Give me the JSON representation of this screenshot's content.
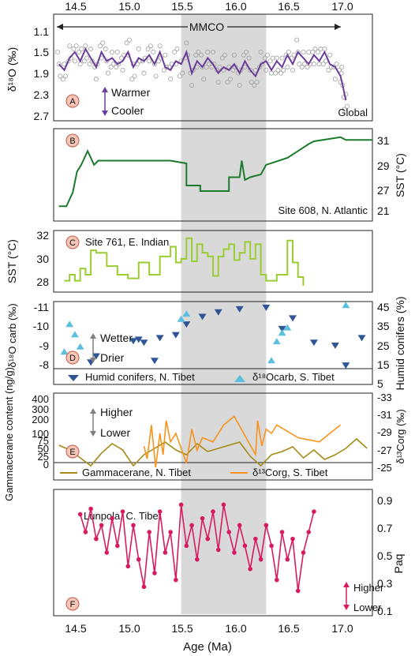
{
  "figure": {
    "x_label": "Age (Ma)",
    "x_ticks": [
      "14.5",
      "15.0",
      "15.5",
      "16.0",
      "16.5",
      "17.0"
    ],
    "xlim": [
      14.3,
      17.3
    ],
    "highlight_band": [
      15.5,
      16.3
    ],
    "highlight_color": "#d9d9d9"
  },
  "panels": {
    "A": {
      "marker": "A",
      "ylabel": "δ¹⁸O (‰)",
      "ticks": [
        "1.1",
        "1.5",
        "1.9",
        "2.3",
        "2.7"
      ],
      "mmco_label": "MMCO",
      "warmer": "Warmer",
      "cooler": "Cooler",
      "corner_label": "Global",
      "line_color": "#6a3d9a"
    },
    "B": {
      "marker": "B",
      "ylabel": "SST (°C)",
      "ticks_right": [
        "21",
        "27",
        "29",
        "31"
      ],
      "site_label": "Site 608, N. Atlantic",
      "line_color": "#1b7a2e"
    },
    "C": {
      "marker": "C",
      "ylabel": "SST (°C)",
      "ticks": [
        "28",
        "30",
        "32"
      ],
      "site_label": "Site 761, E. Indian",
      "line_color": "#9acd32"
    },
    "D": {
      "marker": "D",
      "ylabel_left": "δ¹⁸O carb (‰)",
      "ylabel_right": "Humid conifers (%)",
      "ticks_left": [
        "-11",
        "-10",
        "-9",
        "-8"
      ],
      "ticks_right": [
        "45",
        "35",
        "25",
        "15",
        "5"
      ],
      "wetter": "Wetter",
      "drier": "Drier",
      "legend_conifers": "Humid conifers, N. Tibet",
      "legend_d18o": "δ¹⁸Ocarb, S. Tibet"
    },
    "E": {
      "marker": "E",
      "ylabel_left": "Gammacerane content (ng/g)",
      "ylabel_right": "δ¹³Corg (‰)",
      "ticks_left": [
        "0",
        "25",
        "50",
        "75",
        "100",
        "200",
        "300",
        "400"
      ],
      "ticks_right": [
        "-33",
        "-31",
        "-29",
        "-27",
        "-25"
      ],
      "higher": "Higher",
      "lower": "Lower",
      "legend_gamma": "Gammacerane, N. Tibet",
      "legend_d13c": "δ¹³Corg, S. Tibet"
    },
    "F": {
      "marker": "F",
      "ylabel": "Paq",
      "ticks": [
        "0.1",
        "0.3",
        "0.5",
        "0.7",
        "0.9"
      ],
      "site_label": "Lunpola, C. Tibet",
      "higher": "Higher",
      "lower": "Lower",
      "line_color": "#d81b60"
    }
  },
  "chart_data": [
    {
      "panel": "A",
      "type": "line",
      "xlim": [
        14.3,
        17.3
      ],
      "ylim": [
        2.7,
        1.0
      ],
      "series": [
        {
          "x": [
            14.35,
            14.4,
            14.45,
            14.5,
            14.55,
            14.6,
            14.65,
            14.7,
            14.75,
            14.8,
            14.85,
            14.9,
            14.95,
            15.0,
            15.05,
            15.1,
            15.15,
            15.2,
            15.25,
            15.3,
            15.35,
            15.4,
            15.45,
            15.5,
            15.55,
            15.6,
            15.65,
            15.7,
            15.75,
            15.8,
            15.85,
            15.9,
            15.95,
            16.0,
            16.05,
            16.1,
            16.15,
            16.2,
            16.25,
            16.3,
            16.35,
            16.4,
            16.45,
            16.5,
            16.55,
            16.6,
            16.65,
            16.7,
            16.75,
            16.8,
            16.85,
            16.9,
            16.95,
            17.0,
            17.02,
            17.05
          ],
          "y": [
            1.8,
            1.9,
            1.7,
            1.6,
            1.75,
            1.55,
            1.7,
            1.85,
            1.6,
            1.75,
            1.7,
            1.8,
            1.75,
            1.6,
            1.85,
            1.7,
            1.75,
            1.65,
            1.8,
            1.6,
            1.85,
            1.9,
            1.75,
            1.8,
            1.6,
            1.95,
            1.75,
            1.85,
            1.7,
            1.8,
            1.95,
            1.85,
            1.9,
            1.8,
            1.95,
            1.75,
            1.9,
            2.0,
            1.8,
            1.75,
            1.9,
            1.75,
            1.85,
            1.65,
            1.8,
            1.6,
            1.7,
            1.8,
            1.65,
            1.75,
            1.6,
            1.8,
            1.85,
            2.0,
            2.15,
            2.4
          ]
        }
      ]
    },
    {
      "panel": "B",
      "type": "line",
      "xlim": [
        14.3,
        17.3
      ],
      "ylim": [
        26,
        32
      ],
      "series": [
        {
          "x": [
            14.35,
            14.42,
            14.48,
            14.52,
            14.56,
            14.62,
            14.68,
            14.72,
            14.8,
            15.0,
            15.2,
            15.3,
            15.4,
            15.55,
            15.55,
            15.68,
            15.68,
            15.95,
            15.95,
            16.0,
            16.05,
            16.07,
            16.1,
            16.15,
            16.25,
            16.3,
            16.5,
            16.6,
            16.7,
            16.75,
            17.0,
            17.05,
            17.3
          ],
          "y": [
            26.5,
            26.5,
            27.5,
            29.0,
            29.5,
            30.5,
            29.5,
            29.8,
            29.8,
            29.8,
            29.8,
            29.8,
            29.8,
            29.6,
            28.0,
            28.0,
            27.6,
            27.6,
            28.6,
            28.6,
            28.6,
            29.8,
            28.4,
            28.6,
            28.8,
            29.5,
            30.0,
            30.5,
            31.0,
            31.2,
            31.5,
            31.3,
            31.3
          ]
        }
      ]
    },
    {
      "panel": "C",
      "type": "line",
      "xlim": [
        14.3,
        17.3
      ],
      "ylim": [
        27.2,
        32
      ],
      "series": [
        {
          "x": [
            14.4,
            14.45,
            14.5,
            14.55,
            14.6,
            14.65,
            14.7,
            14.8,
            14.9,
            15.0,
            15.1,
            15.2,
            15.3,
            15.4,
            15.45,
            15.5,
            15.55,
            15.6,
            15.65,
            15.7,
            15.75,
            15.8,
            15.85,
            15.9,
            15.95,
            16.0,
            16.05,
            16.1,
            16.15,
            16.2,
            16.25,
            16.3,
            16.4,
            16.5,
            16.55,
            16.6,
            16.65
          ],
          "y": [
            28.0,
            28.5,
            28.0,
            29.0,
            28.5,
            30.5,
            30.3,
            29.2,
            28.5,
            28.2,
            29.5,
            28.5,
            30.0,
            30.8,
            29.5,
            29.8,
            31.5,
            29.6,
            31.0,
            30.3,
            30.0,
            28.4,
            30.0,
            30.6,
            31.0,
            29.7,
            30.3,
            31.2,
            29.8,
            31.0,
            28.5,
            28.0,
            28.5,
            31.3,
            29.5,
            28.3,
            27.6
          ]
        }
      ]
    },
    {
      "panel": "D",
      "type": "scatter",
      "xlim": [
        14.3,
        17.3
      ],
      "series": [
        {
          "x": [
            14.65,
            14.7,
            15.05,
            15.1,
            15.15,
            15.25,
            15.3,
            15.45,
            15.55,
            15.7,
            15.85,
            16.05,
            16.3,
            16.45,
            16.55,
            16.75,
            16.95,
            17.05,
            17.2
          ],
          "y": [
            42,
            38,
            28,
            27,
            29,
            41,
            26,
            24,
            17,
            12,
            9,
            7,
            6,
            20,
            13,
            29,
            31,
            44,
            26
          ]
        },
        {
          "x": [
            14.4,
            14.45,
            14.5,
            14.55,
            15.5,
            15.55,
            16.35,
            16.4,
            16.45,
            16.5,
            17.05
          ],
          "y": [
            -10.3,
            -8.7,
            -9.3,
            -10.0,
            -8.4,
            -8.1,
            -10.8,
            -9.7,
            -9.2,
            -8.9,
            -7.6
          ]
        }
      ]
    },
    {
      "panel": "E",
      "type": "line",
      "xlim": [
        14.3,
        17.3
      ],
      "series": [
        {
          "x": [
            14.35,
            14.45,
            14.55,
            14.65,
            14.75,
            14.85,
            14.95,
            15.05,
            15.15,
            15.25,
            15.35,
            15.45,
            15.55,
            15.65,
            15.75,
            15.85,
            15.95,
            16.05,
            16.15,
            16.25,
            16.35,
            16.45,
            16.55,
            16.65,
            16.75,
            16.85,
            16.95,
            17.05,
            17.15,
            17.25
          ],
          "y": [
            30,
            45,
            70,
            95,
            55,
            25,
            45,
            95,
            60,
            40,
            20,
            45,
            60,
            25,
            50,
            40,
            30,
            20,
            65,
            95,
            60,
            50,
            35,
            70,
            45,
            75,
            60,
            40,
            10,
            40
          ]
        },
        {
          "x": [
            15.15,
            15.18,
            15.22,
            15.26,
            15.3,
            15.33,
            15.36,
            15.4,
            15.45,
            15.55,
            15.6,
            15.65,
            15.7,
            15.8,
            15.9,
            16.0,
            16.2,
            16.22,
            16.26,
            16.3,
            16.35,
            16.4,
            16.6,
            16.8,
            17.0
          ],
          "y": [
            -30.5,
            -32.0,
            -28.0,
            -33.0,
            -29.0,
            -31.5,
            -27.5,
            -30.0,
            -29.0,
            -32.5,
            -28.5,
            -31.0,
            -29.5,
            -30.0,
            -28.0,
            -27.0,
            -31.5,
            -27.5,
            -30.5,
            -28.5,
            -29.0,
            -28.0,
            -29.5,
            -30.0,
            -28.0
          ]
        }
      ]
    },
    {
      "panel": "F",
      "type": "line",
      "xlim": [
        14.3,
        17.3
      ],
      "ylim": [
        0.05,
        0.95
      ],
      "series": [
        {
          "x": [
            14.55,
            14.6,
            14.65,
            14.7,
            14.75,
            14.8,
            14.85,
            14.9,
            14.95,
            15.0,
            15.05,
            15.1,
            15.15,
            15.2,
            15.25,
            15.3,
            15.35,
            15.4,
            15.45,
            15.5,
            15.55,
            15.6,
            15.65,
            15.7,
            15.75,
            15.8,
            15.85,
            15.9,
            15.95,
            16.0,
            16.05,
            16.1,
            16.15,
            16.2,
            16.25,
            16.3,
            16.35,
            16.4,
            16.45,
            16.5,
            16.55,
            16.6,
            16.65,
            16.7,
            16.75
          ],
          "y": [
            0.22,
            0.35,
            0.18,
            0.4,
            0.3,
            0.5,
            0.25,
            0.45,
            0.2,
            0.6,
            0.3,
            0.55,
            0.75,
            0.35,
            0.65,
            0.2,
            0.5,
            0.35,
            0.7,
            0.15,
            0.45,
            0.3,
            0.55,
            0.25,
            0.4,
            0.2,
            0.48,
            0.15,
            0.35,
            0.5,
            0.3,
            0.45,
            0.62,
            0.4,
            0.55,
            0.3,
            0.45,
            0.7,
            0.35,
            0.55,
            0.4,
            0.78,
            0.5,
            0.35,
            0.2
          ]
        }
      ]
    }
  ]
}
